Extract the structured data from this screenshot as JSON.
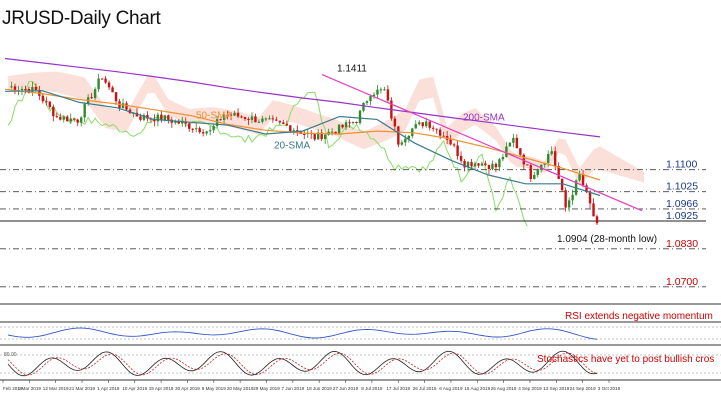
{
  "title": "JRUSD-Daily Chart",
  "chart_data": {
    "type": "candlestick",
    "ylim": [
      1.0655,
      1.155
    ],
    "price_levels": [
      {
        "label": "1.1100",
        "value": 1.11,
        "style": "dashdot",
        "color": "#1a3a8a"
      },
      {
        "label": "1.1025",
        "value": 1.1025,
        "style": "dashdot",
        "color": "#1a3a8a"
      },
      {
        "label": "1.0966",
        "value": 1.0966,
        "style": "dashdot",
        "color": "#1a3a8a"
      },
      {
        "label": "1.0925",
        "value": 1.0925,
        "style": "solid",
        "color": "#1a3a8a"
      },
      {
        "label": "1.0830",
        "value": 1.083,
        "style": "dashdot",
        "color": "#cc0000"
      },
      {
        "label": "1.0700",
        "value": 1.07,
        "style": "dashdot",
        "color": "#cc0000"
      }
    ],
    "annotations": [
      {
        "text": "1.1411",
        "value": 1.1411,
        "color": "#111111"
      },
      {
        "text": "1.0904 (28-month low)",
        "value": 1.0904,
        "color": "#111111"
      },
      {
        "text": "50-SMA",
        "color": "#f09030"
      },
      {
        "text": "200-SMA",
        "color": "#9933cc"
      },
      {
        "text": "20-SMA",
        "color": "#3a7a8a"
      }
    ],
    "series": [
      {
        "name": "200-SMA",
        "color": "#9933cc",
        "values": [
          1.148,
          1.1465,
          1.145,
          1.1435,
          1.1418,
          1.14,
          1.138,
          1.1362,
          1.1345,
          1.133,
          1.1312,
          1.1295,
          1.1278,
          1.1262,
          1.1245,
          1.1228,
          1.1212
        ]
      },
      {
        "name": "50-SMA",
        "color": "#f09030",
        "values": [
          1.1375,
          1.136,
          1.134,
          1.1325,
          1.1305,
          1.1285,
          1.1255,
          1.1235,
          1.1225,
          1.1222,
          1.1232,
          1.1226,
          1.1205,
          1.1175,
          1.114,
          1.1105,
          1.1065
        ]
      },
      {
        "name": "20-SMA",
        "color": "#3a7a8a",
        "values": [
          1.1368,
          1.137,
          1.133,
          1.1312,
          1.1272,
          1.1262,
          1.1252,
          1.1222,
          1.1232,
          1.1282,
          1.1272,
          1.1192,
          1.1132,
          1.1082,
          1.1052,
          1.1052,
          1.1012
        ]
      }
    ],
    "x_ticks": [
      "Feb 2019",
      "1 Mar 2019",
      "12 Mar 2019",
      "21 Mar 2019",
      "1 Apr 2019",
      "10 Apr 2019",
      "19 Apr 2019",
      "30 Apr 2019",
      "9 May 2019",
      "20 May 2019",
      "29 May 2019",
      "7 Jun 2019",
      "18 Jun 2019",
      "27 Jun 2019",
      "8 Jul 2019",
      "17 Jul 2019",
      "26 Jul 2019",
      "6 Aug 2019",
      "15 Aug 2019",
      "26 Aug 2019",
      "4 Sep 2019",
      "13 Sep 2019",
      "24 Sep 2019",
      "3 Oct 2019"
    ],
    "rsi_label": "RSI extends negative momentum",
    "stochastics_label": "Stochastics have yet to post bullish cros",
    "stochastics_level": "80.00",
    "colors": {
      "bull": "#2e8b2e",
      "bear": "#cc1111",
      "resistance": "#e040c0",
      "ichimoku_cloud": "#f5c6b8",
      "ichimoku_line": "#88dd66"
    },
    "grid": false
  }
}
